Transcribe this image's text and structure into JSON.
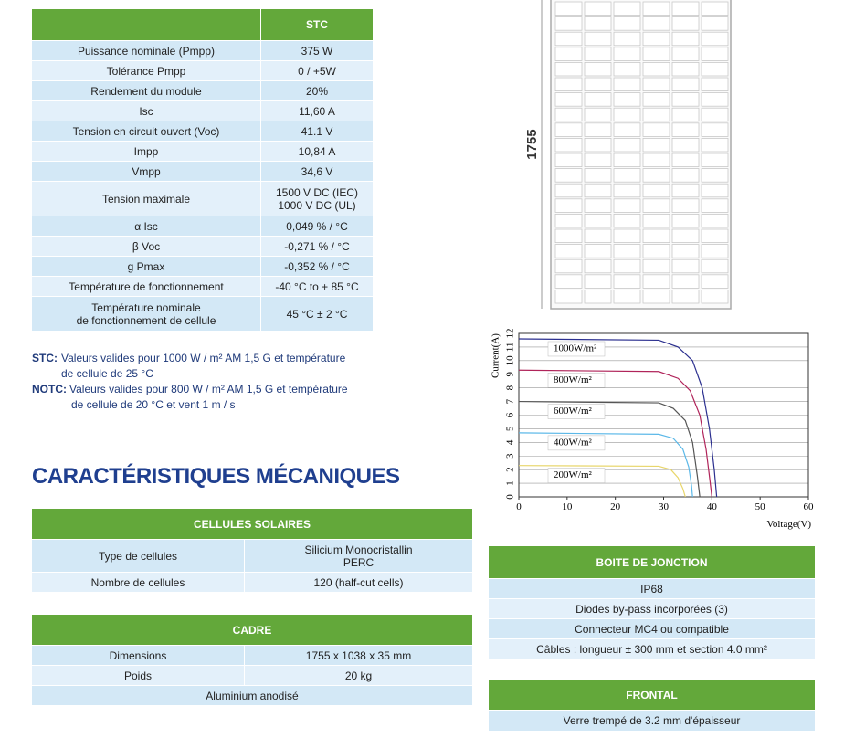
{
  "stc_table": {
    "header": "STC",
    "rows": [
      [
        "Puissance nominale (Pmpp)",
        "375 W"
      ],
      [
        "Tolérance Pmpp",
        "0 / +5W"
      ],
      [
        "Rendement du module",
        "20%"
      ],
      [
        "Isc",
        "11,60 A"
      ],
      [
        "Tension en circuit ouvert (Voc)",
        "41.1 V"
      ],
      [
        "Impp",
        "10,84 A"
      ],
      [
        "Vmpp",
        "34,6 V"
      ],
      [
        "Tension maximale",
        [
          "1500 V DC (IEC)",
          "1000 V DC (UL)"
        ]
      ],
      [
        "α Isc",
        "0,049 % / °C"
      ],
      [
        "β Voc",
        "-0,271 % / °C"
      ],
      [
        "g Pmax",
        "-0,352 % / °C"
      ],
      [
        "Température de fonctionnement",
        "-40 °C to + 85 °C"
      ],
      [
        [
          "Température nominale",
          "de fonctionnement de cellule"
        ],
        "45 °C ± 2 °C"
      ]
    ]
  },
  "notes": [
    {
      "label": "STC:",
      "lines": [
        "Valeurs valides pour 1000 W / m² AM 1,5 G et température",
        "de cellule de 25 °C"
      ]
    },
    {
      "label": "NOTC:",
      "lines": [
        "Valeurs valides pour 800 W / m² AM 1,5 G et température",
        "de cellule de 20 °C et vent 1 m / s"
      ]
    }
  ],
  "section_title": "CARACTÉRISTIQUES MÉCANIQUES",
  "cellules": {
    "header": "CELLULES SOLAIRES",
    "rows": [
      [
        "Type de cellules",
        [
          "Silicium Monocristallin",
          "PERC"
        ]
      ],
      [
        "Nombre de cellules",
        "120 (half-cut cells)"
      ]
    ]
  },
  "cadre": {
    "header": "CADRE",
    "rows": [
      [
        "Dimensions",
        "1755 x 1038 x 35 mm"
      ],
      [
        "Poids",
        "20 kg"
      ],
      [
        "Aluminium anodisé"
      ]
    ]
  },
  "boite": {
    "header": "BOITE DE JONCTION",
    "rows": [
      [
        "IP68"
      ],
      [
        "Diodes by-pass incorporées  (3)"
      ],
      [
        "Connecteur MC4 ou compatible"
      ],
      [
        "Câbles : longueur ± 300 mm et section 4.0 mm²"
      ]
    ]
  },
  "frontal": {
    "header": "FRONTAL",
    "rows": [
      [
        "Verre trempé de 3.2 mm d'épaisseur"
      ]
    ]
  },
  "panel": {
    "dimension": "1755"
  },
  "chart_data": {
    "type": "line",
    "x_label": "Voltage(V)",
    "y_label": "Current(A)",
    "xlim": [
      0,
      60
    ],
    "ylim": [
      0,
      12
    ],
    "xticks": [
      0,
      10,
      20,
      30,
      40,
      50,
      60
    ],
    "yticks": [
      0,
      1,
      2,
      3,
      4,
      5,
      6,
      7,
      8,
      9,
      10,
      11,
      12
    ],
    "grid": true,
    "series": [
      {
        "name": "1000W/m²",
        "color": "#2b2f8f",
        "x": [
          0,
          29,
          33,
          36,
          38,
          39.5,
          40.5,
          41
        ],
        "values": [
          11.6,
          11.5,
          11.0,
          10,
          8,
          5,
          2,
          0
        ]
      },
      {
        "name": "800W/m²",
        "color": "#b0245a",
        "x": [
          0,
          29,
          33,
          35.5,
          37.5,
          38.8,
          39.5,
          40
        ],
        "values": [
          9.3,
          9.2,
          8.7,
          7.8,
          6,
          3.5,
          1.5,
          0
        ]
      },
      {
        "name": "600W/m²",
        "color": "#555555",
        "x": [
          0,
          29,
          32,
          34.5,
          36,
          37,
          37.5
        ],
        "values": [
          7.0,
          6.9,
          6.5,
          5.6,
          4,
          1.5,
          0
        ]
      },
      {
        "name": "400W/m²",
        "color": "#5bb8e8",
        "x": [
          0,
          29,
          32,
          34,
          35.2,
          35.8,
          36
        ],
        "values": [
          4.7,
          4.6,
          4.3,
          3.5,
          2.2,
          0.8,
          0
        ]
      },
      {
        "name": "200W/m²",
        "color": "#e8d66a",
        "x": [
          0,
          29,
          31.5,
          33,
          34,
          34.5
        ],
        "values": [
          2.3,
          2.25,
          2.0,
          1.4,
          0.6,
          0
        ]
      }
    ]
  }
}
